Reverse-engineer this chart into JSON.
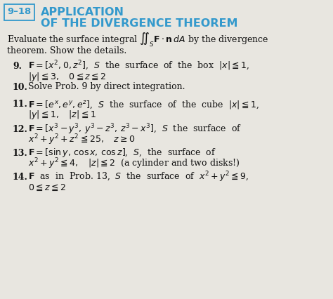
{
  "bg_color": "#e8e6e0",
  "header_box_text": "9–18",
  "header_title_line1": "APPLICATION",
  "header_title_line2": "OF THE DIVERGENCE THEOREM",
  "header_color": "#3399cc",
  "fig_w": 4.74,
  "fig_h": 4.26,
  "dpi": 100
}
